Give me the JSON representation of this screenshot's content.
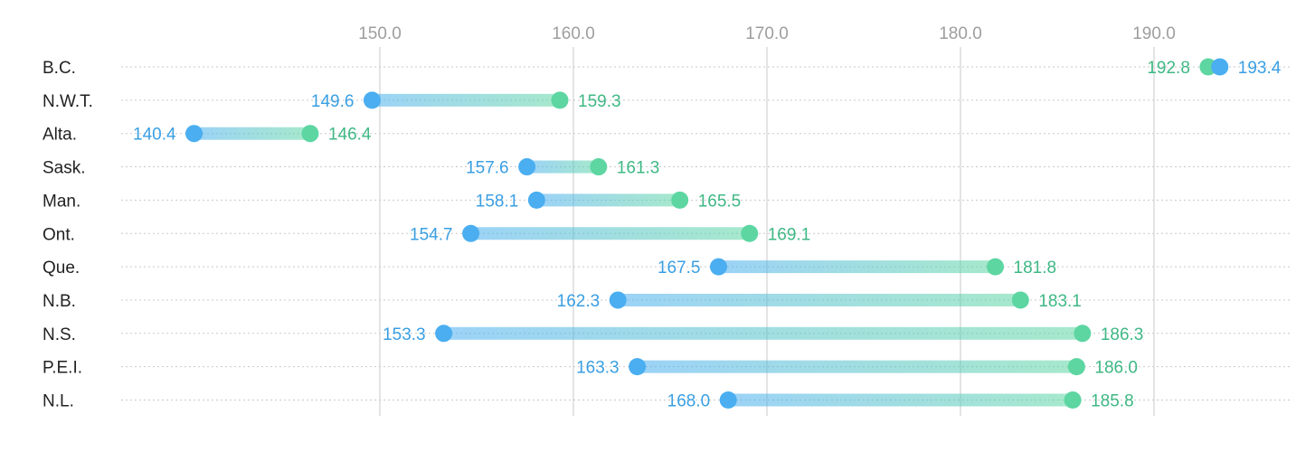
{
  "chart_data": {
    "type": "dumbbell",
    "title": "",
    "xlabel": "",
    "ylabel": "",
    "xlim": [
      130.5,
      197
    ],
    "x_ticks": [
      150.0,
      160.0,
      170.0,
      180.0,
      190.0
    ],
    "x_tick_labels": [
      "150.0",
      "160.0",
      "170.0",
      "180.0",
      "190.0"
    ],
    "grid": {
      "vertical": true,
      "horizontal_dotted": true
    },
    "categories": [
      "B.C.",
      "N.W.T.",
      "Alta.",
      "Sask.",
      "Man.",
      "Ont.",
      "Que.",
      "N.B.",
      "N.S.",
      "P.E.I.",
      "N.L."
    ],
    "series": [
      {
        "color": "#4aaef0",
        "values": [
          193.4,
          149.6,
          140.4,
          157.6,
          158.1,
          154.7,
          167.5,
          162.3,
          153.3,
          163.3,
          168.0
        ],
        "labels": [
          "193.4",
          "149.6",
          "140.4",
          "157.6",
          "158.1",
          "154.7",
          "167.5",
          "162.3",
          "153.3",
          "163.3",
          "168.0"
        ]
      },
      {
        "color": "#5dd6a2",
        "values": [
          192.8,
          159.3,
          146.4,
          161.3,
          165.5,
          169.1,
          181.8,
          183.1,
          186.3,
          186.0,
          185.8
        ],
        "labels": [
          "192.8",
          "159.3",
          "146.4",
          "161.3",
          "165.5",
          "169.1",
          "181.8",
          "183.1",
          "186.3",
          "186.0",
          "185.8"
        ]
      }
    ],
    "colors": {
      "series_a": "#4aaef0",
      "series_a_text": "#3a9fe3",
      "series_b": "#5dd6a2",
      "series_b_text": "#3fb884",
      "grid": "#dcdcdc",
      "dots": "#c9c9c9",
      "tick_text": "#9e9e9e",
      "category_text": "#222222"
    }
  }
}
